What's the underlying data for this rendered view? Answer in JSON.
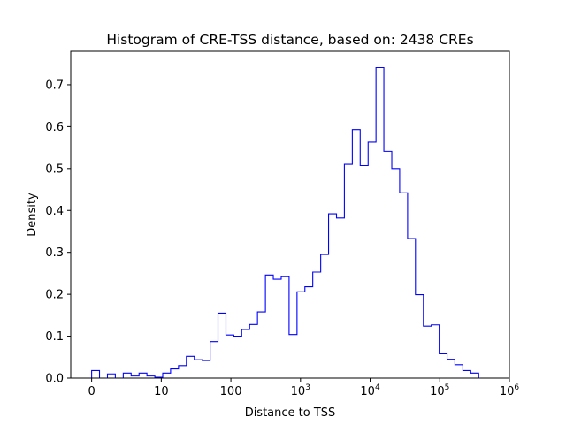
{
  "chart_data": {
    "type": "histogram",
    "title": "Histogram of CRE-TSS distance, based on: 2438 CREs",
    "xlabel": "Distance to TSS",
    "ylabel": "Density",
    "x_scale": "symlog",
    "xlim": [
      -0.3,
      6.0
    ],
    "ylim": [
      0,
      0.78
    ],
    "grid": false,
    "series_color": "#0000ff",
    "x_ticks": [
      {
        "value": 0,
        "base": "0",
        "exp": ""
      },
      {
        "value": 10,
        "base": "10",
        "exp": ""
      },
      {
        "value": 100,
        "base": "100",
        "exp": ""
      },
      {
        "value": 1000,
        "base": "10",
        "exp": "3"
      },
      {
        "value": 10000,
        "base": "10",
        "exp": "4"
      },
      {
        "value": 100000,
        "base": "10",
        "exp": "5"
      },
      {
        "value": 1000000,
        "base": "10",
        "exp": "6"
      }
    ],
    "y_ticks": [
      "0.0",
      "0.1",
      "0.2",
      "0.3",
      "0.4",
      "0.5",
      "0.6",
      "0.7"
    ],
    "bin_edges_log": [
      0,
      0.113,
      0.227,
      0.34,
      0.454,
      0.567,
      0.681,
      0.794,
      0.908,
      1.021,
      1.134,
      1.248,
      1.361,
      1.475,
      1.588,
      1.702,
      1.815,
      1.929,
      2.042,
      2.155,
      2.269,
      2.382,
      2.496,
      2.609,
      2.723,
      2.836,
      2.95,
      3.063,
      3.176,
      3.29,
      3.403,
      3.517,
      3.63,
      3.744,
      3.857,
      3.971,
      4.084,
      4.197,
      4.311,
      4.424,
      4.538,
      4.651,
      4.765,
      4.878,
      4.992,
      5.105,
      5.218,
      5.332,
      5.445,
      5.559
    ],
    "densities": [
      0.018,
      0.0,
      0.01,
      0.0,
      0.012,
      0.005,
      0.012,
      0.005,
      0.002,
      0.012,
      0.022,
      0.03,
      0.052,
      0.044,
      0.042,
      0.087,
      0.155,
      0.103,
      0.1,
      0.116,
      0.128,
      0.158,
      0.246,
      0.236,
      0.242,
      0.104,
      0.206,
      0.218,
      0.253,
      0.295,
      0.392,
      0.382,
      0.51,
      0.593,
      0.507,
      0.563,
      0.741,
      0.541,
      0.5,
      0.442,
      0.333,
      0.199,
      0.124,
      0.127,
      0.058,
      0.045,
      0.032,
      0.018,
      0.012
    ]
  }
}
